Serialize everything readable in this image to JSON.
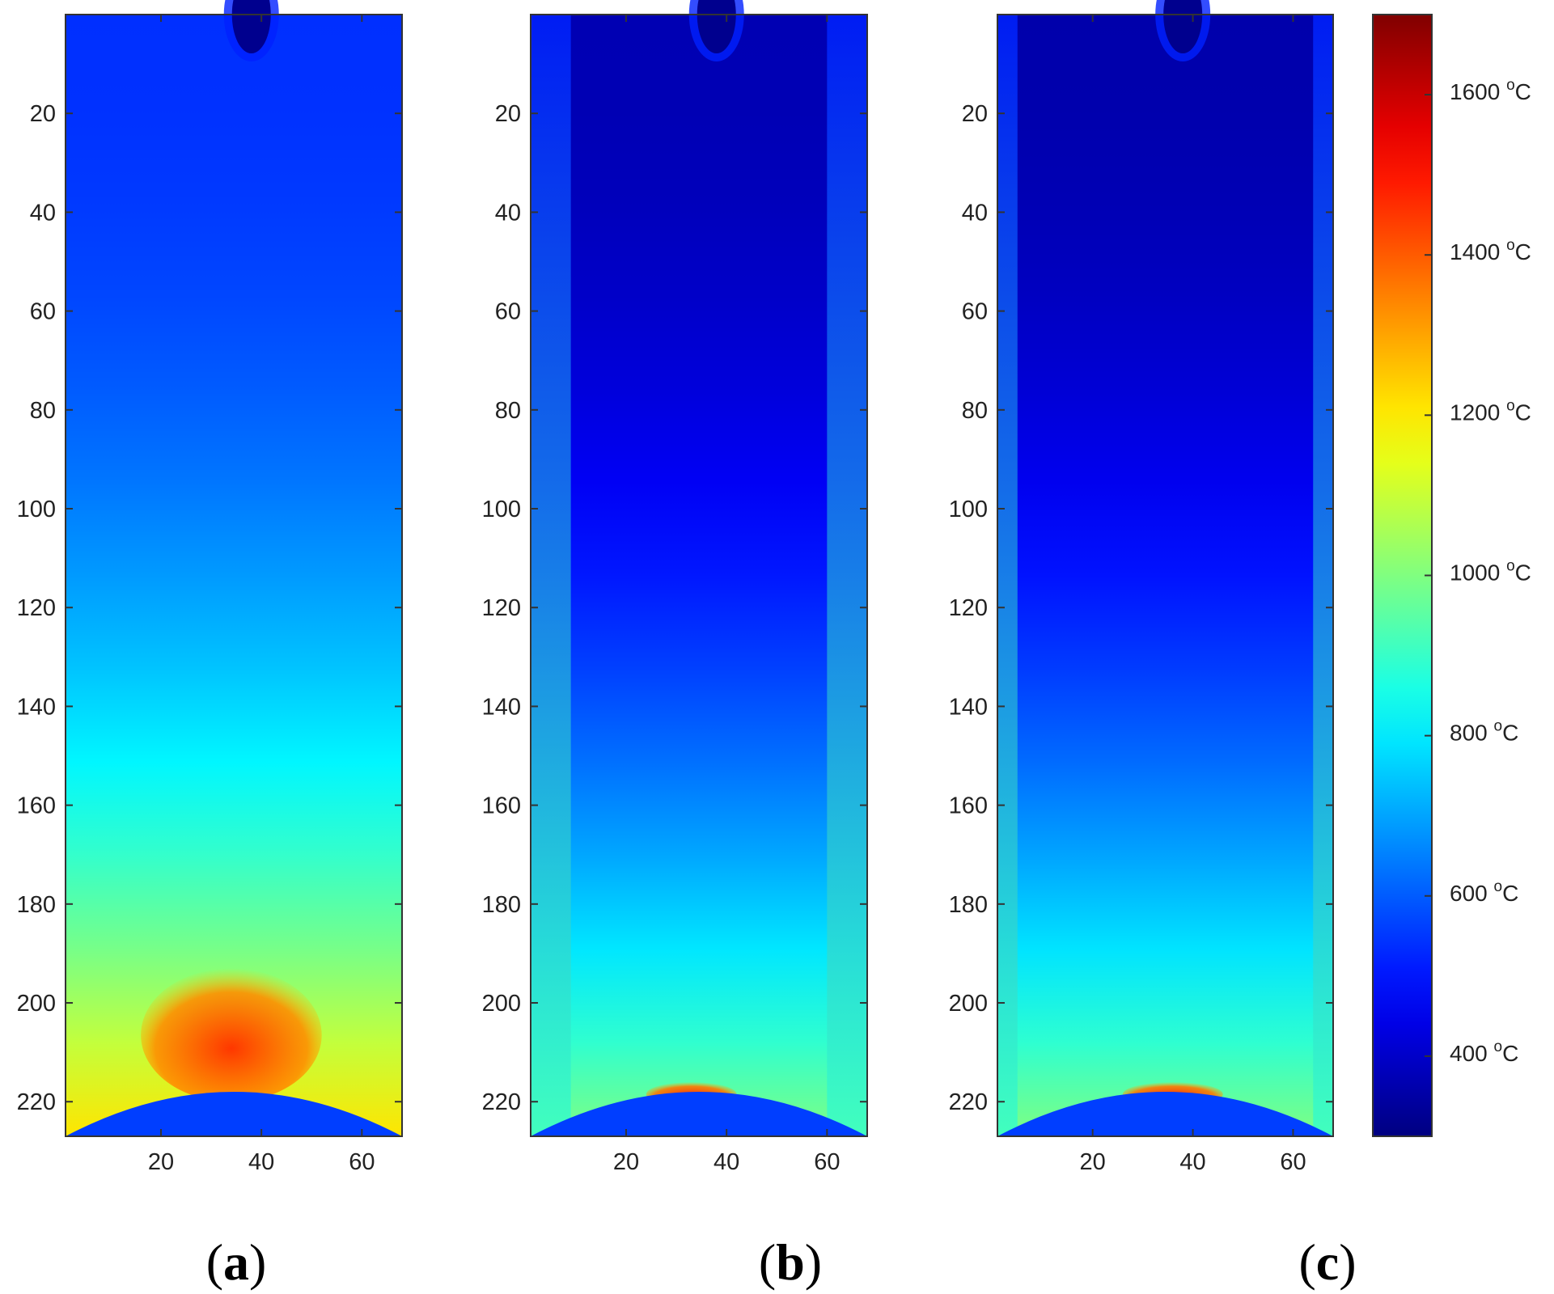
{
  "chart_data": [
    {
      "type": "heatmap",
      "panel": "a",
      "title": "",
      "xlabel": "",
      "ylabel": "",
      "xlim": [
        1,
        68
      ],
      "ylim": [
        0,
        227
      ],
      "y_reversed": true,
      "x_ticks": [
        20,
        40,
        60
      ],
      "y_ticks": [
        20,
        40,
        60,
        80,
        100,
        120,
        140,
        160,
        180,
        200,
        220
      ],
      "colorbar": "jet",
      "clim": [
        300,
        1700
      ],
      "top_value": 540,
      "bottom_value": 1210,
      "hot_zone": {
        "x": [
          16,
          52
        ],
        "y": [
          193,
          220
        ],
        "value": 1450
      },
      "edge_margin": 0
    },
    {
      "type": "heatmap",
      "panel": "b",
      "title": "",
      "xlabel": "",
      "ylabel": "",
      "xlim": [
        1,
        68
      ],
      "ylim": [
        0,
        227
      ],
      "y_reversed": true,
      "x_ticks": [
        20,
        40,
        60
      ],
      "y_ticks": [
        20,
        40,
        60,
        80,
        100,
        120,
        140,
        160,
        180,
        200,
        220
      ],
      "colorbar": "jet",
      "clim": [
        300,
        1700
      ],
      "top_value": 370,
      "bottom_value": 1000,
      "hot_zone": {
        "x": [
          24,
          42
        ],
        "y": [
          216,
          221
        ],
        "value": 1480
      },
      "edge_margin": 8
    },
    {
      "type": "heatmap",
      "panel": "c",
      "title": "",
      "xlabel": "",
      "ylabel": "",
      "xlim": [
        1,
        68
      ],
      "ylim": [
        0,
        227
      ],
      "y_reversed": true,
      "x_ticks": [
        20,
        40,
        60
      ],
      "y_ticks": [
        20,
        40,
        60,
        80,
        100,
        120,
        140,
        160,
        180,
        200,
        220
      ],
      "colorbar": "jet",
      "clim": [
        300,
        1700
      ],
      "top_value": 360,
      "bottom_value": 1000,
      "hot_zone": {
        "x": [
          26,
          46
        ],
        "y": [
          216,
          221
        ],
        "value": 1480
      },
      "edge_margin": 4
    }
  ],
  "colorbar": {
    "min": 300,
    "max": 1700,
    "ticks": [
      400,
      600,
      800,
      1000,
      1200,
      1400,
      1600
    ],
    "tick_labels": [
      "400",
      "600",
      "800",
      "1000",
      "1200",
      "1400",
      "1600"
    ],
    "unit_sup": "o",
    "unit": "C"
  },
  "panel_labels": [
    {
      "open": "(",
      "letter": "a",
      "close": ")"
    },
    {
      "open": "(",
      "letter": "b",
      "close": ")"
    },
    {
      "open": "(",
      "letter": "c",
      "close": ")"
    }
  ]
}
